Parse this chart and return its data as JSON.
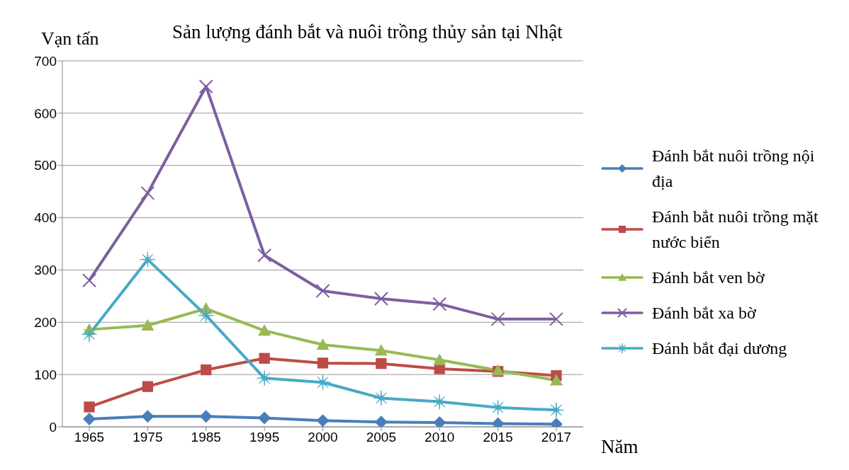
{
  "chart_data": {
    "type": "line",
    "title": "Sản lượng đánh bắt và nuôi trồng thủy sản tại Nhật",
    "ylabel": "Vạn tấn",
    "xlabel": "Năm",
    "categories": [
      "1965",
      "1975",
      "1985",
      "1995",
      "2000",
      "2005",
      "2010",
      "2015",
      "2017"
    ],
    "series": [
      {
        "name": "Đánh bắt nuôi trồng nội địa",
        "color": "#4a7ebb",
        "marker": "diamond",
        "values": [
          15,
          20,
          20,
          17,
          12,
          9,
          8,
          6,
          5
        ]
      },
      {
        "name": "Đánh bắt nuôi trồng mặt nước biển",
        "color": "#be4b48",
        "marker": "square",
        "values": [
          38,
          77,
          109,
          131,
          122,
          121,
          111,
          106,
          98
        ]
      },
      {
        "name": "Đánh bắt ven bờ",
        "color": "#98b954",
        "marker": "triangle",
        "values": [
          186,
          194,
          226,
          184,
          157,
          146,
          128,
          108,
          89
        ]
      },
      {
        "name": "Đánh bắt xa bờ",
        "color": "#7d5fa0",
        "marker": "cross",
        "values": [
          280,
          447,
          651,
          328,
          260,
          245,
          235,
          206,
          206
        ]
      },
      {
        "name": "Đánh bắt đại dương",
        "color": "#46aac5",
        "marker": "star",
        "values": [
          177,
          320,
          213,
          93,
          85,
          55,
          48,
          37,
          32
        ]
      }
    ],
    "ylim": [
      0,
      700
    ],
    "yticks": [
      0,
      100,
      200,
      300,
      400,
      500,
      600,
      700
    ],
    "grid": "y",
    "legend": "right",
    "line_style": "solid"
  }
}
